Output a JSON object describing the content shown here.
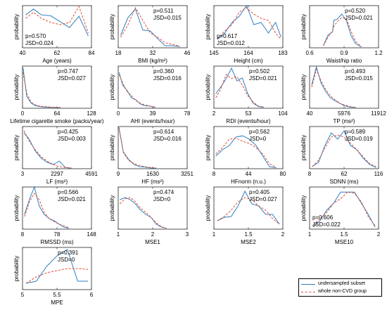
{
  "colors": {
    "subset": "#2f7fc1",
    "whole": "#e24a33"
  },
  "legend": {
    "subset": "undersampled subset",
    "whole": "whole non-CVD group"
  },
  "chart_data": [
    {
      "type": "line",
      "xlabel": "Age (years)",
      "ylabel": "probability",
      "xticks": [
        "40",
        "62",
        "84"
      ],
      "xlim": [
        40,
        84
      ],
      "xtick_values": [
        40,
        62,
        84
      ],
      "stat_p": "p=0.570",
      "stat_jsd": "JSD=0.024",
      "stat_pos": "bl",
      "x": [
        42,
        47,
        52,
        58,
        64,
        70,
        76,
        82
      ],
      "series": [
        {
          "name": "undersampled subset",
          "values": [
            0.78,
            0.92,
            0.78,
            0.76,
            0.62,
            0.48,
            0.75,
            0.28
          ]
        },
        {
          "name": "whole non-CVD group",
          "values": [
            0.7,
            0.84,
            0.7,
            0.6,
            0.55,
            0.6,
            0.98,
            0.35
          ]
        }
      ]
    },
    {
      "type": "line",
      "xlabel": "BMI (kg/m²)",
      "ylabel": "probability",
      "xticks": [
        "18",
        "32",
        "46"
      ],
      "xlim": [
        18,
        46
      ],
      "xtick_values": [
        18,
        32,
        46
      ],
      "stat_p": "p=0.511",
      "stat_jsd": "JSD=0.015",
      "stat_pos": "tr",
      "x": [
        19,
        22,
        25,
        28,
        31,
        34,
        37,
        40,
        43
      ],
      "series": [
        {
          "name": "undersampled subset",
          "values": [
            0.3,
            0.72,
            0.92,
            0.42,
            0.4,
            0.22,
            0.05,
            0.05,
            0.03
          ]
        },
        {
          "name": "whole non-CVD group",
          "values": [
            0.25,
            0.55,
            0.95,
            0.65,
            0.35,
            0.25,
            0.12,
            0.08,
            0.04
          ]
        }
      ]
    },
    {
      "type": "line",
      "xlabel": "Height (cm)",
      "ylabel": "probability",
      "xticks": [
        "145",
        "164",
        "183"
      ],
      "xlim": [
        145,
        183
      ],
      "xtick_values": [
        145,
        164,
        183
      ],
      "stat_p": "p=0.617",
      "stat_jsd": "JSD=0.012",
      "stat_pos": "bl",
      "x": [
        147,
        151,
        155,
        159,
        163,
        167,
        171,
        175,
        179,
        182
      ],
      "series": [
        {
          "name": "undersampled subset",
          "values": [
            0.2,
            0.35,
            0.6,
            0.75,
            1.0,
            0.55,
            0.6,
            0.35,
            0.6,
            0.25
          ]
        },
        {
          "name": "whole non-CVD group",
          "values": [
            0.22,
            0.4,
            0.55,
            0.85,
            0.95,
            0.8,
            0.7,
            0.65,
            0.35,
            0.2
          ]
        }
      ]
    },
    {
      "type": "line",
      "xlabel": "Waist/hip ratio",
      "ylabel": "probability",
      "xticks": [
        "0.6",
        "0.9",
        "1.2"
      ],
      "xlim": [
        0.6,
        1.2
      ],
      "xtick_values": [
        0.6,
        0.9,
        1.2
      ],
      "stat_p": "p=0.520",
      "stat_jsd": "JSD=0.021",
      "stat_pos": "tr",
      "x": [
        0.72,
        0.76,
        0.8,
        0.81,
        0.84,
        0.88,
        0.92,
        0.96,
        1.0,
        1.05
      ],
      "series": [
        {
          "name": "undersampled subset",
          "values": [
            0.05,
            0.3,
            0.38,
            0.65,
            0.68,
            0.8,
            0.65,
            0.3,
            0.1,
            0.02
          ]
        },
        {
          "name": "whole non-CVD group",
          "values": [
            0.05,
            0.25,
            0.4,
            0.5,
            0.62,
            0.72,
            0.68,
            0.4,
            0.15,
            0.03
          ]
        }
      ]
    },
    {
      "type": "line",
      "xlabel": "Lifetime cigarette smoke (packs/year)",
      "ylabel": "probability",
      "xticks": [
        "0",
        "64",
        "128"
      ],
      "xlim": [
        0,
        128
      ],
      "xtick_values": [
        0,
        64,
        128
      ],
      "stat_p": "p=0.747",
      "stat_jsd": "JSD=0.027",
      "stat_pos": "tr",
      "x": [
        1,
        8,
        16,
        24,
        32,
        40,
        50,
        60,
        70
      ],
      "series": [
        {
          "name": "undersampled subset",
          "values": [
            0.95,
            0.28,
            0.12,
            0.06,
            0.04,
            0.03,
            0.02,
            0.02,
            0.01
          ]
        },
        {
          "name": "whole non-CVD group",
          "values": [
            0.85,
            0.35,
            0.14,
            0.08,
            0.05,
            0.04,
            0.03,
            0.02,
            0.02
          ]
        }
      ]
    },
    {
      "type": "line",
      "xlabel": "AHI (events/hour)",
      "ylabel": "probability",
      "xticks": [
        "0",
        "39",
        "78"
      ],
      "xlim": [
        0,
        78
      ],
      "xtick_values": [
        0,
        39,
        78
      ],
      "stat_p": "p=0.360",
      "stat_jsd": "JSD=0.016",
      "stat_pos": "tr",
      "x": [
        1,
        5,
        10,
        15,
        20,
        25,
        30,
        36,
        42
      ],
      "series": [
        {
          "name": "undersampled subset",
          "values": [
            0.85,
            0.55,
            0.42,
            0.25,
            0.2,
            0.1,
            0.06,
            0.05,
            0.02
          ]
        },
        {
          "name": "whole non-CVD group",
          "values": [
            0.8,
            0.6,
            0.4,
            0.3,
            0.18,
            0.12,
            0.08,
            0.05,
            0.03
          ]
        }
      ]
    },
    {
      "type": "line",
      "xlabel": "RDI (events/hour)",
      "ylabel": "probability",
      "xticks": [
        "2",
        "53",
        "104"
      ],
      "xlim": [
        2,
        104
      ],
      "xtick_values": [
        2,
        53,
        104
      ],
      "stat_p": "p=0.502",
      "stat_jsd": "JSD=0.021",
      "stat_pos": "tr",
      "x": [
        5,
        12,
        20,
        28,
        36,
        44,
        52,
        60,
        68,
        76
      ],
      "series": [
        {
          "name": "undersampled subset",
          "values": [
            0.35,
            0.5,
            0.7,
            0.95,
            0.65,
            0.72,
            0.35,
            0.12,
            0.04,
            0.02
          ]
        },
        {
          "name": "whole non-CVD group",
          "values": [
            0.25,
            0.45,
            0.8,
            0.7,
            0.75,
            0.55,
            0.3,
            0.15,
            0.05,
            0.03
          ]
        }
      ]
    },
    {
      "type": "line",
      "xlabel": "TP (ms²)",
      "ylabel": "probability",
      "xticks": [
        "40",
        "5976",
        "11912"
      ],
      "xlim": [
        40,
        11912
      ],
      "xtick_values": [
        40,
        5976,
        11912
      ],
      "stat_p": "p=0.493",
      "stat_jsd": "JSD=0.015",
      "stat_pos": "tr",
      "x": [
        400,
        1200,
        2000,
        2800,
        3600,
        4400,
        5200,
        6000,
        7000,
        8000
      ],
      "series": [
        {
          "name": "undersampled subset",
          "values": [
            0.55,
            0.98,
            0.6,
            0.4,
            0.25,
            0.18,
            0.12,
            0.06,
            0.03,
            0.02
          ]
        },
        {
          "name": "whole non-CVD group",
          "values": [
            0.5,
            0.92,
            0.65,
            0.45,
            0.3,
            0.2,
            0.12,
            0.08,
            0.04,
            0.02
          ]
        }
      ]
    },
    {
      "type": "line",
      "xlabel": "LF (ms²)",
      "ylabel": "probability",
      "xticks": [
        "3",
        "2297",
        "4591"
      ],
      "xlim": [
        3,
        4591
      ],
      "xtick_values": [
        3,
        2297,
        4591
      ],
      "stat_p": "p=0.425",
      "stat_jsd": "JSD=0.003",
      "stat_pos": "tr",
      "x": [
        100,
        450,
        850,
        1250,
        1650,
        2050,
        2450,
        2850,
        3250
      ],
      "series": [
        {
          "name": "undersampled subset",
          "values": [
            0.85,
            0.7,
            0.42,
            0.25,
            0.15,
            0.1,
            0.18,
            0.03,
            0.01
          ]
        },
        {
          "name": "whole non-CVD group",
          "values": [
            0.9,
            0.65,
            0.45,
            0.28,
            0.18,
            0.1,
            0.05,
            0.03,
            0.02
          ]
        }
      ]
    },
    {
      "type": "line",
      "xlabel": "HF (ms²)",
      "ylabel": "probability",
      "xticks": [
        "9",
        "1630",
        "3251"
      ],
      "xlim": [
        9,
        3251
      ],
      "xtick_values": [
        9,
        1630,
        3251
      ],
      "stat_p": "p=0.614",
      "stat_jsd": "JSD=0.016",
      "stat_pos": "tr",
      "x": [
        50,
        250,
        500,
        750,
        1000,
        1250,
        1500,
        1800
      ],
      "series": [
        {
          "name": "undersampled subset",
          "values": [
            0.95,
            0.4,
            0.22,
            0.1,
            0.05,
            0.04,
            0.02,
            0.01
          ]
        },
        {
          "name": "whole non-CVD group",
          "values": [
            0.98,
            0.38,
            0.2,
            0.12,
            0.08,
            0.05,
            0.03,
            0.02
          ]
        }
      ]
    },
    {
      "type": "line",
      "xlabel": "HFnorm (n.u.)",
      "ylabel": "probability",
      "xticks": [
        "8",
        "44",
        "80"
      ],
      "xlim": [
        8,
        80
      ],
      "xtick_values": [
        8,
        44,
        80
      ],
      "stat_p": "p=0.562",
      "stat_jsd": "JSD=0",
      "stat_pos": "tr",
      "x": [
        10,
        17,
        24,
        31,
        38,
        45,
        52,
        59,
        66,
        73
      ],
      "series": [
        {
          "name": "undersampled subset",
          "values": [
            0.3,
            0.45,
            0.55,
            0.75,
            0.78,
            0.7,
            0.55,
            0.3,
            0.05,
            0.02
          ]
        },
        {
          "name": "whole non-CVD group",
          "values": [
            0.35,
            0.5,
            0.7,
            0.72,
            0.65,
            0.6,
            0.5,
            0.35,
            0.12,
            0.03
          ]
        }
      ]
    },
    {
      "type": "line",
      "xlabel": "SDNN (ms)",
      "ylabel": "probability",
      "xticks": [
        "8",
        "62",
        "116"
      ],
      "xlim": [
        8,
        116
      ],
      "xtick_values": [
        8,
        62,
        116
      ],
      "stat_p": "p=0.589",
      "stat_jsd": "JSD=0.019",
      "stat_pos": "tr",
      "x": [
        12,
        22,
        32,
        42,
        52,
        62,
        72,
        82,
        92,
        102,
        112
      ],
      "series": [
        {
          "name": "undersampled subset",
          "values": [
            0.05,
            0.15,
            0.55,
            0.85,
            0.7,
            0.9,
            0.55,
            0.45,
            0.25,
            0.1,
            0.03
          ]
        },
        {
          "name": "whole non-CVD group",
          "values": [
            0.05,
            0.2,
            0.5,
            0.75,
            0.8,
            0.75,
            0.6,
            0.45,
            0.28,
            0.12,
            0.05
          ]
        }
      ]
    },
    {
      "type": "line",
      "xlabel": "RMSSD (ms)",
      "ylabel": "probability",
      "xticks": [
        "8",
        "78",
        "148"
      ],
      "xlim": [
        8,
        148
      ],
      "xtick_values": [
        8,
        78,
        148
      ],
      "stat_p": "p=0.566",
      "stat_jsd": "JSD=0.021",
      "stat_pos": "tr",
      "x": [
        12,
        22,
        32,
        42,
        52,
        62,
        72,
        82,
        92,
        102
      ],
      "series": [
        {
          "name": "undersampled subset",
          "values": [
            0.35,
            0.7,
            1.0,
            0.55,
            0.35,
            0.25,
            0.2,
            0.12,
            0.05,
            0.02
          ]
        },
        {
          "name": "whole non-CVD group",
          "values": [
            0.3,
            0.65,
            0.85,
            0.7,
            0.4,
            0.25,
            0.18,
            0.12,
            0.08,
            0.03
          ]
        }
      ]
    },
    {
      "type": "line",
      "xlabel": "MSE1",
      "ylabel": "probability",
      "xticks": [
        "1",
        "2",
        "3"
      ],
      "xlim": [
        1,
        3
      ],
      "xtick_values": [
        1,
        2,
        3
      ],
      "stat_p": "p=0.474",
      "stat_jsd": "JSD=0",
      "stat_pos": "tr",
      "x": [
        1.05,
        1.2,
        1.35,
        1.5,
        1.65,
        1.8,
        1.95,
        2.1,
        2.25,
        2.4
      ],
      "series": [
        {
          "name": "undersampled subset",
          "values": [
            0.7,
            0.75,
            0.7,
            0.6,
            0.45,
            0.35,
            0.28,
            0.12,
            0.05,
            0.02
          ]
        },
        {
          "name": "whole non-CVD group",
          "values": [
            0.6,
            0.72,
            0.75,
            0.65,
            0.5,
            0.4,
            0.28,
            0.15,
            0.06,
            0.02
          ]
        }
      ]
    },
    {
      "type": "line",
      "xlabel": "MSE2",
      "ylabel": "probability",
      "xticks": [
        "1",
        "1.5",
        "2"
      ],
      "xlim": [
        1,
        2
      ],
      "xtick_values": [
        1,
        1.5,
        2
      ],
      "stat_p": "p=0.405",
      "stat_jsd": "JSD=0.027",
      "stat_pos": "tr",
      "x": [
        1.05,
        1.15,
        1.25,
        1.35,
        1.45,
        1.55,
        1.65,
        1.75,
        1.85,
        1.95
      ],
      "series": [
        {
          "name": "undersampled subset",
          "values": [
            0.2,
            0.28,
            0.3,
            0.55,
            0.9,
            0.6,
            0.55,
            0.35,
            0.35,
            0.12
          ]
        },
        {
          "name": "whole non-CVD group",
          "values": [
            0.2,
            0.3,
            0.45,
            0.65,
            0.75,
            0.7,
            0.55,
            0.45,
            0.25,
            0.12
          ]
        }
      ]
    },
    {
      "type": "line",
      "xlabel": "MSE10",
      "ylabel": "probability",
      "xticks": [
        "1",
        "1.5",
        "2"
      ],
      "xlim": [
        1,
        2
      ],
      "xtick_values": [
        1,
        1.5,
        2
      ],
      "stat_p": "p=0.606",
      "stat_jsd": "JSD=0.022",
      "stat_pos": "bl",
      "x": [
        1.05,
        1.15,
        1.25,
        1.35,
        1.45,
        1.55,
        1.65,
        1.75,
        1.85,
        1.95
      ],
      "series": [
        {
          "name": "undersampled subset",
          "values": [
            0.05,
            0.2,
            0.45,
            0.62,
            0.88,
            0.88,
            0.88,
            0.62,
            0.35,
            0.05
          ]
        },
        {
          "name": "whole non-CVD group",
          "values": [
            0.1,
            0.25,
            0.4,
            0.62,
            0.72,
            0.88,
            0.85,
            0.65,
            0.3,
            0.08
          ]
        }
      ]
    },
    {
      "type": "line",
      "xlabel": "MPE",
      "ylabel": "probability",
      "xticks": [
        "5",
        "5.5",
        "6"
      ],
      "xlim": [
        5,
        6
      ],
      "xtick_values": [
        5,
        5.5,
        6
      ],
      "stat_p": "p=0.391",
      "stat_jsd": "JSD=0",
      "stat_pos": "tr",
      "x": [
        5.05,
        5.2,
        5.35,
        5.5,
        5.65,
        5.8,
        5.95
      ],
      "series": [
        {
          "name": "undersampled subset",
          "values": [
            0.15,
            0.2,
            0.55,
            0.8,
            0.95,
            0.2,
            0.2
          ]
        },
        {
          "name": "whole non-CVD group",
          "values": [
            0.15,
            0.3,
            0.4,
            0.45,
            0.5,
            0.5,
            0.48
          ]
        }
      ]
    }
  ]
}
